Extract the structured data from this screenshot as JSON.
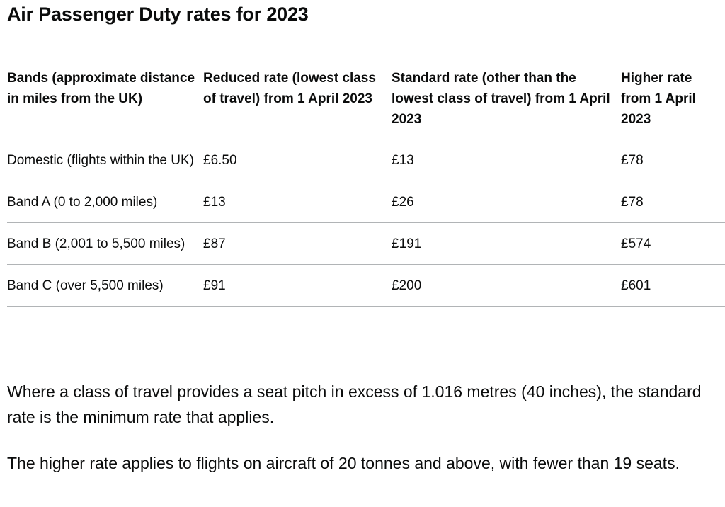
{
  "title": "Air Passenger Duty rates for 2023",
  "table": {
    "headers": [
      "Bands (approximate distance in miles from the UK)",
      "Reduced rate (lowest class of travel) from 1 April 2023",
      "Standard rate (other than the lowest class of travel) from 1 April 2023",
      "Higher rate from 1 April 2023"
    ],
    "rows": [
      [
        "Domestic (flights within the UK)",
        "£6.50",
        "£13",
        "£78"
      ],
      [
        "Band A (0 to 2,000 miles)",
        "£13",
        "£26",
        "£78"
      ],
      [
        "Band B (2,001 to 5,500 miles)",
        "£87",
        "£191",
        "£574"
      ],
      [
        "Band C (over 5,500 miles)",
        "£91",
        "£200",
        "£601"
      ]
    ]
  },
  "notes": [
    "Where a class of travel provides a seat pitch in excess of 1.016 metres (40 inches), the standard rate is the minimum rate that applies.",
    "The higher rate applies to flights on aircraft of 20 tonnes and above, with fewer than 19 seats."
  ]
}
